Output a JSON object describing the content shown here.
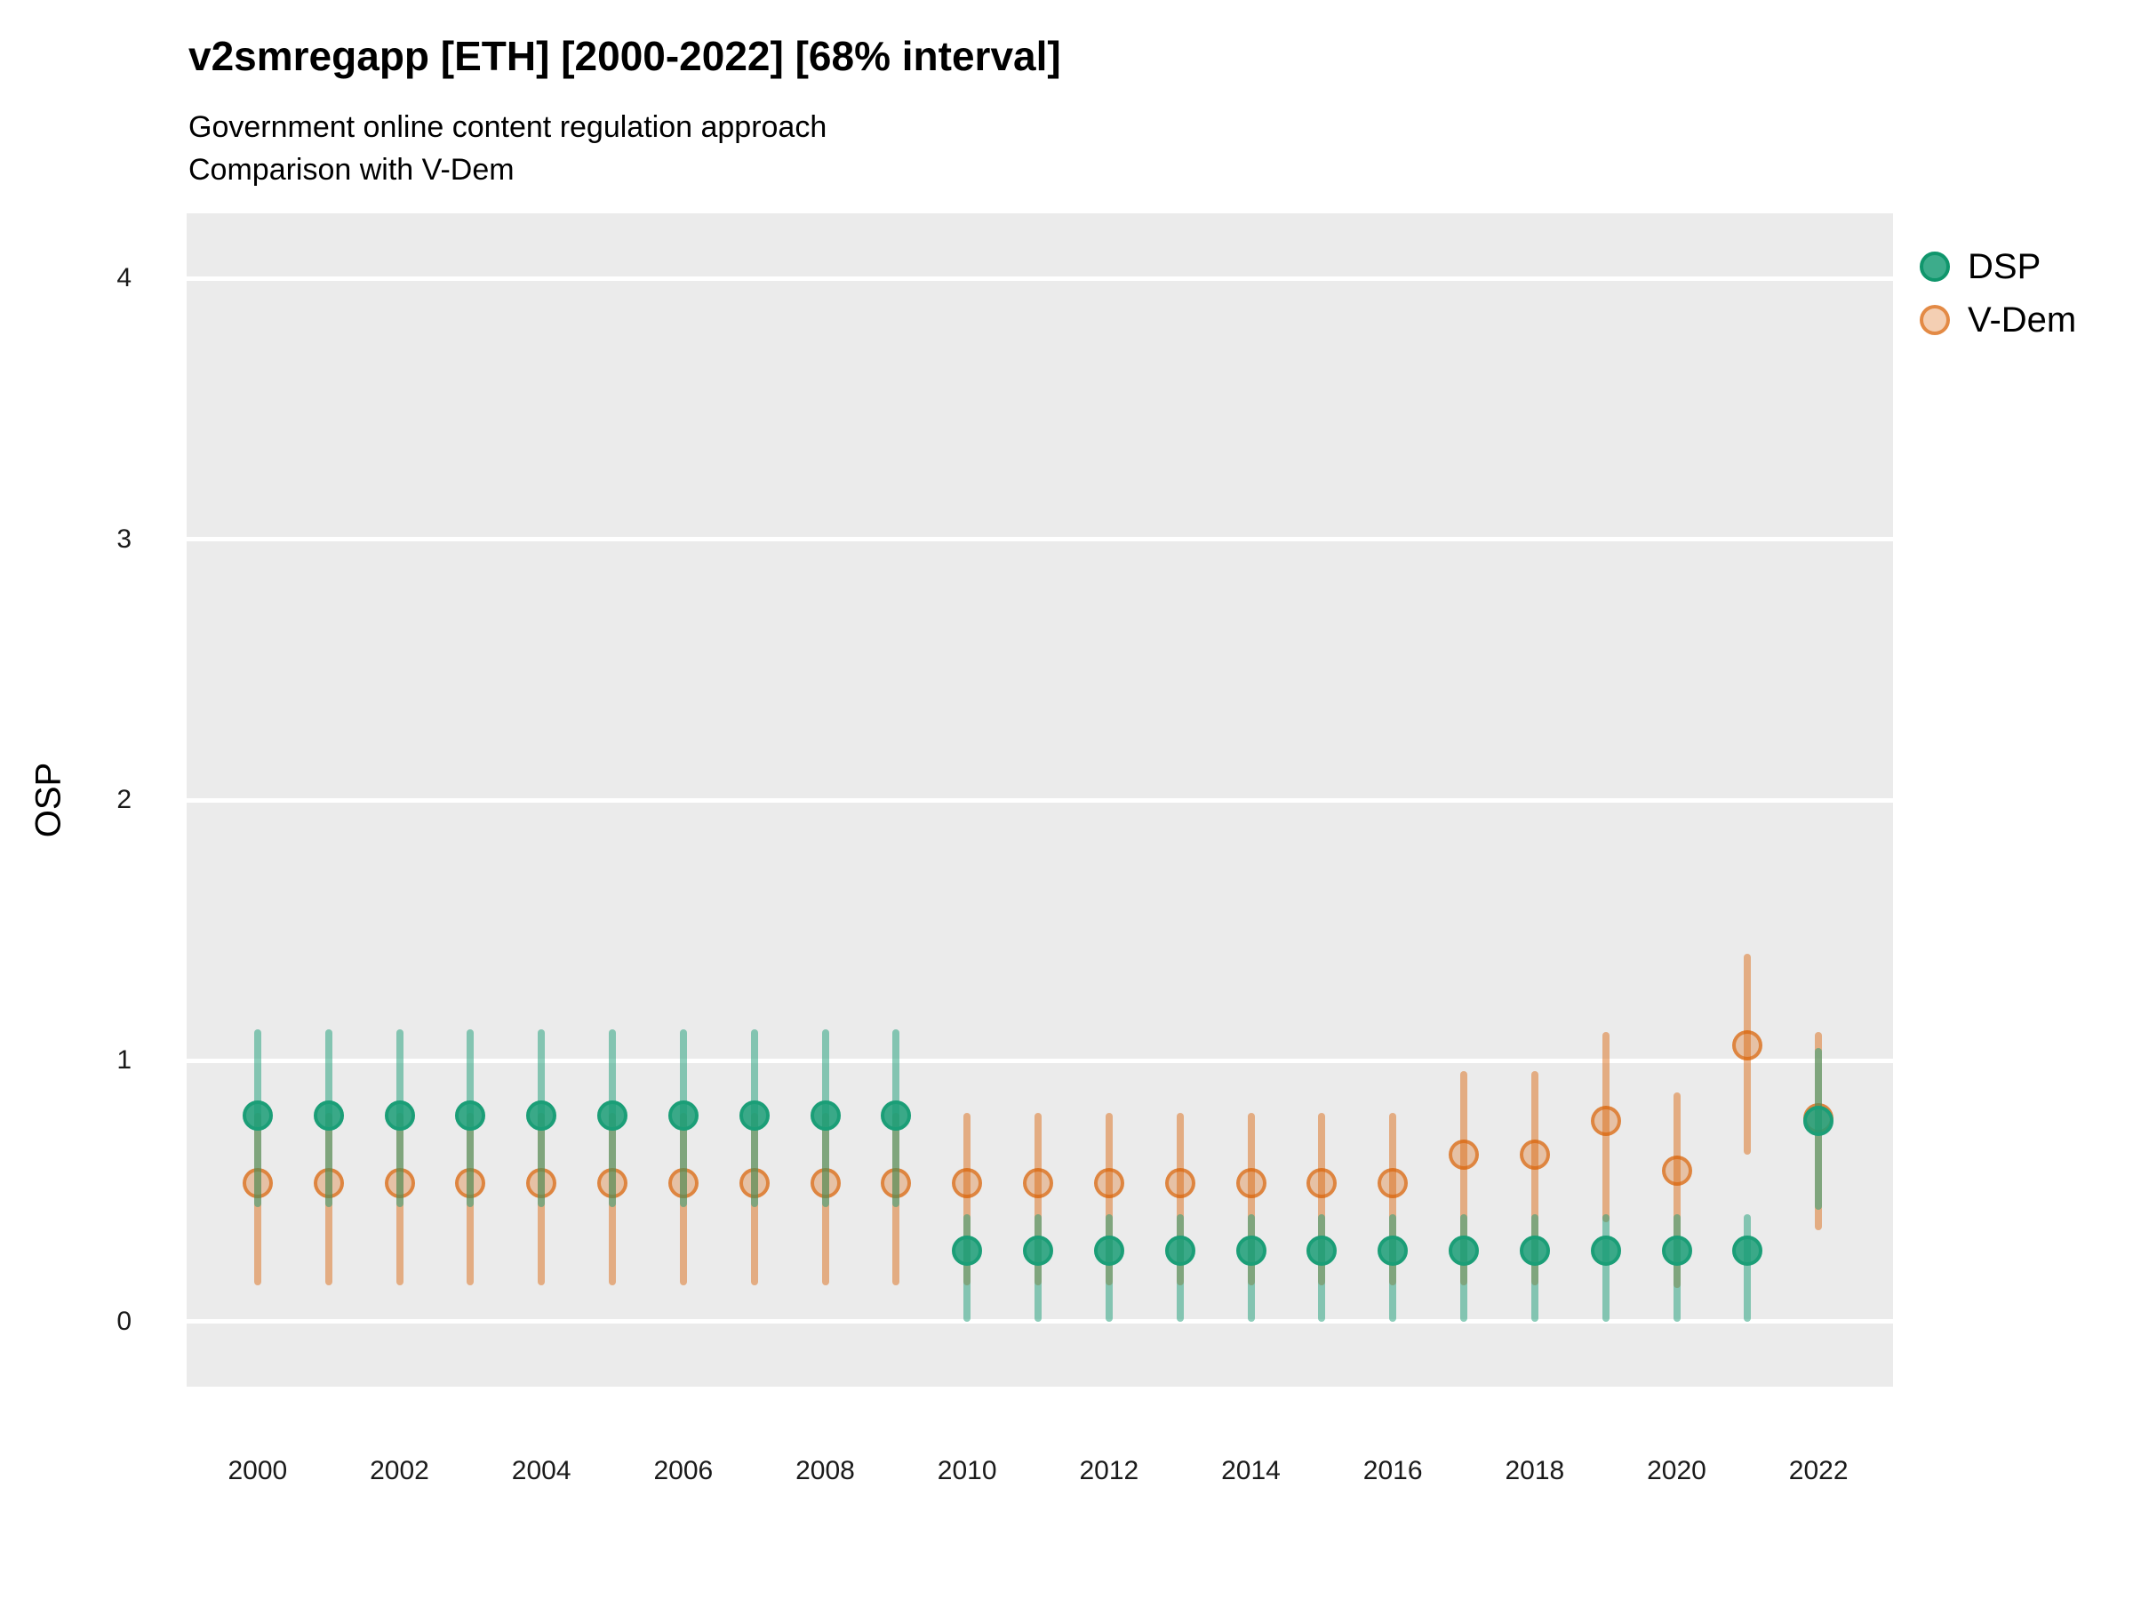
{
  "header": {
    "title": "v2smregapp [ETH] [2000-2022] [68% interval]",
    "subtitle_line1": "Government online content regulation approach",
    "subtitle_line2": "Comparison with V-Dem"
  },
  "axes": {
    "y_title": "OSP",
    "y_tick_labels": [
      "0",
      "1",
      "2",
      "3",
      "4"
    ],
    "x_tick_labels": [
      "2000",
      "2002",
      "2004",
      "2006",
      "2008",
      "2010",
      "2012",
      "2014",
      "2016",
      "2018",
      "2020",
      "2022"
    ]
  },
  "legend": {
    "position": "right",
    "items": [
      {
        "label": "DSP",
        "color": "#1B9E77"
      },
      {
        "label": "V-Dem",
        "color": "#D95F02"
      }
    ]
  },
  "chart_data": {
    "type": "scatter",
    "variant": "pointrange",
    "interval": "68%",
    "title": "v2smregapp [ETH] [2000-2022] [68% interval]",
    "subtitle": [
      "Government online content regulation approach",
      "Comparison with V-Dem"
    ],
    "xlabel": "",
    "ylabel": "OSP",
    "x": [
      2000,
      2001,
      2002,
      2003,
      2004,
      2005,
      2006,
      2007,
      2008,
      2009,
      2010,
      2011,
      2012,
      2013,
      2014,
      2015,
      2016,
      2017,
      2018,
      2019,
      2020,
      2021,
      2022
    ],
    "x_ticks": [
      2000,
      2002,
      2004,
      2006,
      2008,
      2010,
      2012,
      2014,
      2016,
      2018,
      2020,
      2022
    ],
    "y_ticks": [
      0,
      1,
      2,
      3,
      4
    ],
    "xlim": [
      1999.0,
      2023.05
    ],
    "ylim": [
      -0.25,
      4.25
    ],
    "grid": "horizontal-major-only",
    "panel_bg": "#EBEBEB",
    "grid_color": "#FFFFFF",
    "legend_position": "right",
    "series": [
      {
        "name": "V-Dem",
        "color": "#D95F02",
        "bar_alpha": 0.45,
        "dot_fill_alpha": 0.3,
        "dot_stroke_alpha": 0.62,
        "values": [
          0.53,
          0.53,
          0.53,
          0.53,
          0.53,
          0.53,
          0.53,
          0.53,
          0.53,
          0.53,
          0.53,
          0.53,
          0.53,
          0.53,
          0.53,
          0.53,
          0.53,
          0.64,
          0.64,
          0.77,
          0.58,
          1.06,
          0.78
        ],
        "lower": [
          0.14,
          0.14,
          0.14,
          0.14,
          0.14,
          0.14,
          0.14,
          0.14,
          0.14,
          0.14,
          0.14,
          0.14,
          0.14,
          0.14,
          0.14,
          0.14,
          0.14,
          0.14,
          0.14,
          0.38,
          0.13,
          0.64,
          0.35
        ],
        "upper": [
          0.8,
          0.8,
          0.8,
          0.8,
          0.8,
          0.8,
          0.8,
          0.8,
          0.8,
          0.8,
          0.8,
          0.8,
          0.8,
          0.8,
          0.8,
          0.8,
          0.8,
          0.96,
          0.96,
          1.11,
          0.88,
          1.41,
          1.11
        ]
      },
      {
        "name": "DSP",
        "color": "#1B9E77",
        "bar_alpha": 0.5,
        "dot_fill_alpha": 0.85,
        "dot_stroke_alpha": 1.0,
        "values": [
          0.79,
          0.79,
          0.79,
          0.79,
          0.79,
          0.79,
          0.79,
          0.79,
          0.79,
          0.79,
          0.27,
          0.27,
          0.27,
          0.27,
          0.27,
          0.27,
          0.27,
          0.27,
          0.27,
          0.27,
          0.27,
          0.27,
          0.77
        ],
        "lower": [
          0.44,
          0.44,
          0.44,
          0.44,
          0.44,
          0.44,
          0.44,
          0.44,
          0.44,
          0.44,
          0.0,
          0.0,
          0.0,
          0.0,
          0.0,
          0.0,
          0.0,
          0.0,
          0.0,
          0.0,
          0.0,
          0.0,
          0.43
        ],
        "upper": [
          1.12,
          1.12,
          1.12,
          1.12,
          1.12,
          1.12,
          1.12,
          1.12,
          1.12,
          1.12,
          0.41,
          0.41,
          0.41,
          0.41,
          0.41,
          0.41,
          0.41,
          0.41,
          0.41,
          0.41,
          0.41,
          0.41,
          1.05
        ]
      }
    ]
  }
}
